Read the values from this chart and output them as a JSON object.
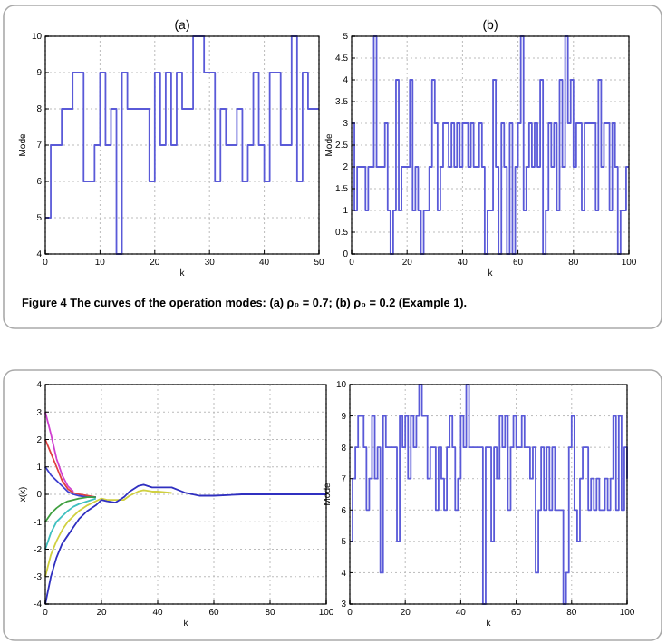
{
  "chart_data": [
    {
      "type": "step",
      "title": "(a)",
      "xlabel": "k",
      "ylabel": "Mode",
      "annotations": [
        "Figure 4  The curves of the operation modes: (a) ρ₀ = 0.7; (b) ρ₀ = 0.2 (Example 1)."
      ],
      "xlim": [
        0,
        50
      ],
      "ylim": [
        4,
        10
      ],
      "xticks": [
        0,
        10,
        20,
        30,
        40,
        50
      ],
      "yticks": [
        4,
        5,
        6,
        7,
        8,
        9,
        10
      ],
      "grid": true,
      "x": [
        0,
        1,
        2,
        3,
        4,
        5,
        6,
        7,
        8,
        9,
        10,
        11,
        12,
        13,
        14,
        15,
        16,
        17,
        18,
        19,
        20,
        21,
        22,
        23,
        24,
        25,
        26,
        27,
        28,
        29,
        30,
        31,
        32,
        33,
        34,
        35,
        36,
        37,
        38,
        39,
        40,
        41,
        42,
        43,
        44,
        45,
        46,
        47,
        48,
        49,
        50
      ],
      "series": [
        {
          "color": "#5a5ad8",
          "values": [
            5,
            7,
            7,
            8,
            8,
            9,
            9,
            6,
            6,
            7,
            9,
            7,
            8,
            4,
            9,
            8,
            8,
            8,
            8,
            6,
            9,
            7,
            9,
            7,
            9,
            8,
            8,
            10,
            10,
            9,
            9,
            6,
            8,
            7,
            7,
            8,
            6,
            7,
            9,
            7,
            6,
            9,
            9,
            7,
            7,
            10,
            6,
            9,
            8,
            8,
            8
          ]
        }
      ]
    },
    {
      "type": "step",
      "title": "(b)",
      "xlabel": "k",
      "ylabel": "Mode",
      "xlim": [
        0,
        100
      ],
      "ylim": [
        0,
        5
      ],
      "xticks": [
        0,
        20,
        40,
        60,
        80,
        100
      ],
      "yticks": [
        0,
        0.5,
        1,
        1.5,
        2,
        2.5,
        3,
        3.5,
        4,
        4.5,
        5
      ],
      "grid": true,
      "x": [
        0,
        1,
        2,
        3,
        4,
        5,
        6,
        7,
        8,
        9,
        10,
        11,
        12,
        13,
        14,
        15,
        16,
        17,
        18,
        19,
        20,
        21,
        22,
        23,
        24,
        25,
        26,
        27,
        28,
        29,
        30,
        31,
        32,
        33,
        34,
        35,
        36,
        37,
        38,
        39,
        40,
        41,
        42,
        43,
        44,
        45,
        46,
        47,
        48,
        49,
        50,
        51,
        52,
        53,
        54,
        55,
        56,
        57,
        58,
        59,
        60,
        61,
        62,
        63,
        64,
        65,
        66,
        67,
        68,
        69,
        70,
        71,
        72,
        73,
        74,
        75,
        76,
        77,
        78,
        79,
        80,
        81,
        82,
        83,
        84,
        85,
        86,
        87,
        88,
        89,
        90,
        91,
        92,
        93,
        94,
        95,
        96,
        97,
        98,
        99,
        100
      ],
      "series": [
        {
          "color": "#5a5ad8",
          "values": [
            3,
            1,
            2,
            2,
            2,
            1,
            2,
            2,
            5,
            2,
            2,
            2,
            3,
            1,
            0,
            1,
            4,
            1,
            2,
            2,
            2,
            4,
            1,
            2,
            1,
            0,
            1,
            1,
            2,
            4,
            3,
            1,
            2,
            3,
            3,
            2,
            3,
            2,
            3,
            2,
            3,
            3,
            2,
            3,
            2,
            2,
            3,
            2,
            0,
            1,
            1,
            4,
            2,
            0,
            3,
            2,
            0,
            3,
            0,
            2,
            3,
            5,
            1,
            2,
            3,
            2,
            3,
            2,
            4,
            0,
            1,
            3,
            2,
            3,
            1,
            4,
            2,
            5,
            3,
            4,
            2,
            3,
            3,
            1,
            3,
            3,
            3,
            3,
            1,
            4,
            2,
            3,
            3,
            1,
            3,
            2,
            0,
            1,
            1,
            2,
            2
          ]
        }
      ]
    },
    {
      "type": "line",
      "xlabel": "k",
      "ylabel": "x(k)",
      "xlim": [
        0,
        100
      ],
      "ylim": [
        -4,
        4
      ],
      "xticks": [
        0,
        20,
        40,
        60,
        80,
        100
      ],
      "yticks": [
        -4,
        -3,
        -2,
        -1,
        0,
        1,
        2,
        3,
        4
      ],
      "grid": true,
      "x": [
        0,
        2,
        4,
        6,
        8,
        10,
        12,
        15,
        18,
        20,
        22,
        25,
        28,
        30,
        33,
        35,
        38,
        40,
        45,
        50,
        55,
        60,
        70,
        80,
        90,
        100
      ],
      "series": [
        {
          "color": "#d040d0",
          "values": [
            3,
            2.2,
            1.3,
            0.7,
            0.3,
            0.1,
            null,
            null,
            null,
            null,
            null,
            null,
            null,
            null,
            null,
            null,
            null,
            null,
            null,
            null,
            null,
            null,
            null,
            null,
            null,
            null
          ]
        },
        {
          "color": "#e04040",
          "values": [
            2,
            1.5,
            1,
            0.5,
            0.2,
            0.05,
            0,
            -0.05,
            -0.1,
            null,
            null,
            null,
            null,
            null,
            null,
            null,
            null,
            null,
            null,
            null,
            null,
            null,
            null,
            null,
            null,
            null
          ]
        },
        {
          "color": "#4040d0",
          "values": [
            1,
            0.7,
            0.5,
            0.3,
            0.1,
            0,
            -0.05,
            -0.1,
            -0.1,
            null,
            null,
            null,
            null,
            null,
            null,
            null,
            null,
            null,
            null,
            null,
            null,
            null,
            null,
            null,
            null,
            null
          ]
        },
        {
          "color": "#40a040",
          "values": [
            -1,
            -0.7,
            -0.5,
            -0.35,
            -0.25,
            -0.2,
            -0.15,
            -0.1,
            -0.1,
            null,
            null,
            null,
            null,
            null,
            null,
            null,
            null,
            null,
            null,
            null,
            null,
            null,
            null,
            null,
            null,
            null
          ]
        },
        {
          "color": "#40c0c0",
          "values": [
            -2,
            -1.4,
            -1,
            -0.8,
            -0.6,
            -0.45,
            -0.35,
            -0.25,
            -0.15,
            null,
            null,
            null,
            null,
            null,
            null,
            null,
            null,
            null,
            null,
            null,
            null,
            null,
            null,
            null,
            null,
            null
          ]
        },
        {
          "color": "#d0d040",
          "values": [
            -3,
            -2.2,
            -1.7,
            -1.3,
            -1,
            -0.8,
            -0.6,
            -0.4,
            -0.25,
            -0.15,
            -0.2,
            -0.2,
            -0.2,
            -0.05,
            0.1,
            0.15,
            0.1,
            0.1,
            0.05,
            null,
            null,
            null,
            null,
            null,
            null,
            null
          ]
        },
        {
          "color": "#3030c0",
          "values": [
            -4,
            -3,
            -2.3,
            -1.8,
            -1.5,
            -1.2,
            -0.9,
            -0.6,
            -0.4,
            -0.2,
            -0.25,
            -0.3,
            -0.1,
            0.1,
            0.3,
            0.35,
            0.25,
            0.25,
            0.25,
            0.05,
            -0.05,
            -0.05,
            0,
            0,
            0,
            0
          ]
        }
      ]
    },
    {
      "type": "step",
      "xlabel": "k",
      "ylabel": "Mode",
      "xlim": [
        0,
        100
      ],
      "ylim": [
        3,
        10
      ],
      "xticks": [
        0,
        20,
        40,
        60,
        80,
        100
      ],
      "yticks": [
        3,
        4,
        5,
        6,
        7,
        8,
        9,
        10
      ],
      "grid": true,
      "x": [
        0,
        1,
        2,
        3,
        4,
        5,
        6,
        7,
        8,
        9,
        10,
        11,
        12,
        13,
        14,
        15,
        16,
        17,
        18,
        19,
        20,
        21,
        22,
        23,
        24,
        25,
        26,
        27,
        28,
        29,
        30,
        31,
        32,
        33,
        34,
        35,
        36,
        37,
        38,
        39,
        40,
        41,
        42,
        43,
        44,
        45,
        46,
        47,
        48,
        49,
        50,
        51,
        52,
        53,
        54,
        55,
        56,
        57,
        58,
        59,
        60,
        61,
        62,
        63,
        64,
        65,
        66,
        67,
        68,
        69,
        70,
        71,
        72,
        73,
        74,
        75,
        76,
        77,
        78,
        79,
        80,
        81,
        82,
        83,
        84,
        85,
        86,
        87,
        88,
        89,
        90,
        91,
        92,
        93,
        94,
        95,
        96,
        97,
        98,
        99,
        100
      ],
      "series": [
        {
          "color": "#5a5ad8",
          "values": [
            5,
            7,
            8,
            9,
            9,
            8,
            6,
            7,
            9,
            7,
            8,
            4,
            9,
            8,
            8,
            8,
            8,
            5,
            9,
            8,
            9,
            7,
            9,
            8,
            9,
            10,
            9,
            9,
            7,
            8,
            8,
            6,
            8,
            7,
            6,
            8,
            9,
            8,
            6,
            7,
            9,
            8,
            10,
            8,
            8,
            8,
            8,
            8,
            3,
            8,
            8,
            5,
            8,
            7,
            9,
            8,
            9,
            6,
            8,
            9,
            8,
            8,
            9,
            8,
            8,
            7,
            8,
            4,
            6,
            8,
            6,
            8,
            6,
            8,
            6,
            6,
            6,
            3,
            4,
            8,
            9,
            6,
            5,
            7,
            8,
            8,
            6,
            7,
            6,
            7,
            6,
            6,
            7,
            6,
            7,
            9,
            6,
            9,
            6,
            8,
            7
          ]
        }
      ]
    }
  ]
}
